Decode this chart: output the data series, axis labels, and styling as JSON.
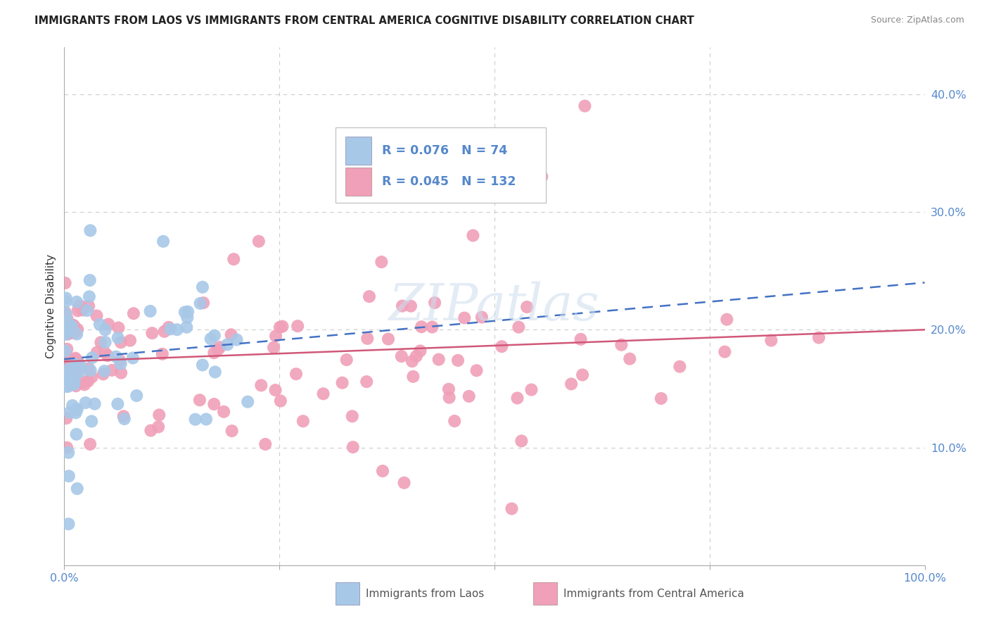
{
  "title": "IMMIGRANTS FROM LAOS VS IMMIGRANTS FROM CENTRAL AMERICA COGNITIVE DISABILITY CORRELATION CHART",
  "source": "Source: ZipAtlas.com",
  "ylabel": "Cognitive Disability",
  "legend_laos_R": "0.076",
  "legend_laos_N": "74",
  "legend_ca_R": "0.045",
  "legend_ca_N": "132",
  "laos_color": "#a8c8e8",
  "ca_color": "#f0a0b8",
  "laos_line_color": "#4472c4",
  "ca_line_color": "#d05878",
  "watermark": "ZIPatlas",
  "grid_color": "#cccccc",
  "title_color": "#222222",
  "axis_tick_color": "#5588cc",
  "ylim_max": 0.44
}
